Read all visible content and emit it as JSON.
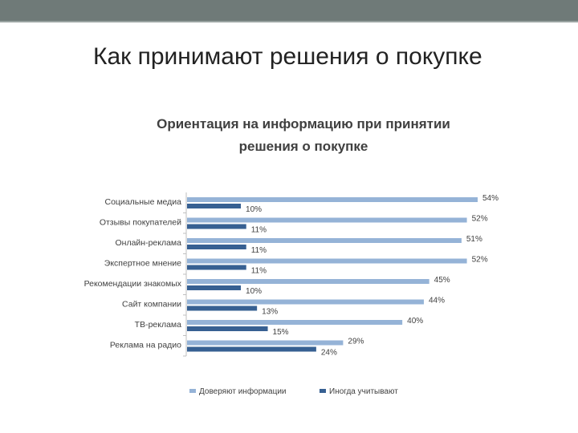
{
  "slide": {
    "title": "Как принимают решения о покупке"
  },
  "colors": {
    "band": "#6f7a78",
    "series_trust": "#95b3d7",
    "series_sometimes": "#376092",
    "axis": "#bfbfbf",
    "text": "#404040"
  },
  "chart_data": {
    "type": "bar",
    "orientation": "horizontal",
    "title_lines": [
      "Ориентация на информацию при принятии",
      "решения о покупке"
    ],
    "categories": [
      "Социальные медиа",
      "Отзывы покупателей",
      "Онлайн-реклама",
      "Экспертное мнение",
      "Рекомендации знакомых",
      "Сайт компании",
      "ТВ-реклама",
      "Реклама на радио"
    ],
    "series": [
      {
        "name": "Доверяют информации",
        "values": [
          54,
          52,
          51,
          52,
          45,
          44,
          40,
          29
        ]
      },
      {
        "name": "Иногда учитывают",
        "values": [
          10,
          11,
          11,
          11,
          10,
          13,
          15,
          24
        ]
      }
    ],
    "value_format": "percent",
    "xlim": [
      0,
      60
    ],
    "grid": false,
    "legend": "bottom"
  }
}
